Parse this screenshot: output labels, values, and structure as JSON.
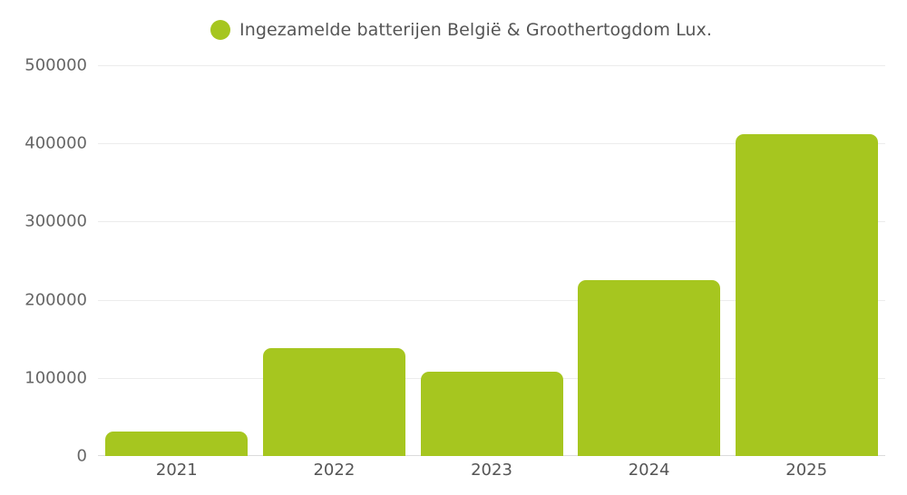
{
  "legend": {
    "label": "Ingezamelde batterijen België & Groothertogdom Lux.",
    "color": "#a6c61f"
  },
  "chart_data": {
    "type": "bar",
    "title": "",
    "xlabel": "",
    "ylabel": "",
    "categories": [
      "2021",
      "2022",
      "2023",
      "2024",
      "2025"
    ],
    "series": [
      {
        "name": "Ingezamelde batterijen België & Groothertogdom Lux.",
        "color": "#a6c61f",
        "values": [
          31000,
          138000,
          108000,
          225000,
          412000
        ]
      }
    ],
    "ylim": [
      0,
      500000
    ],
    "yticks": [
      "0",
      "100000",
      "200000",
      "300000",
      "400000",
      "500000"
    ],
    "grid": true,
    "legend_position": "top"
  }
}
